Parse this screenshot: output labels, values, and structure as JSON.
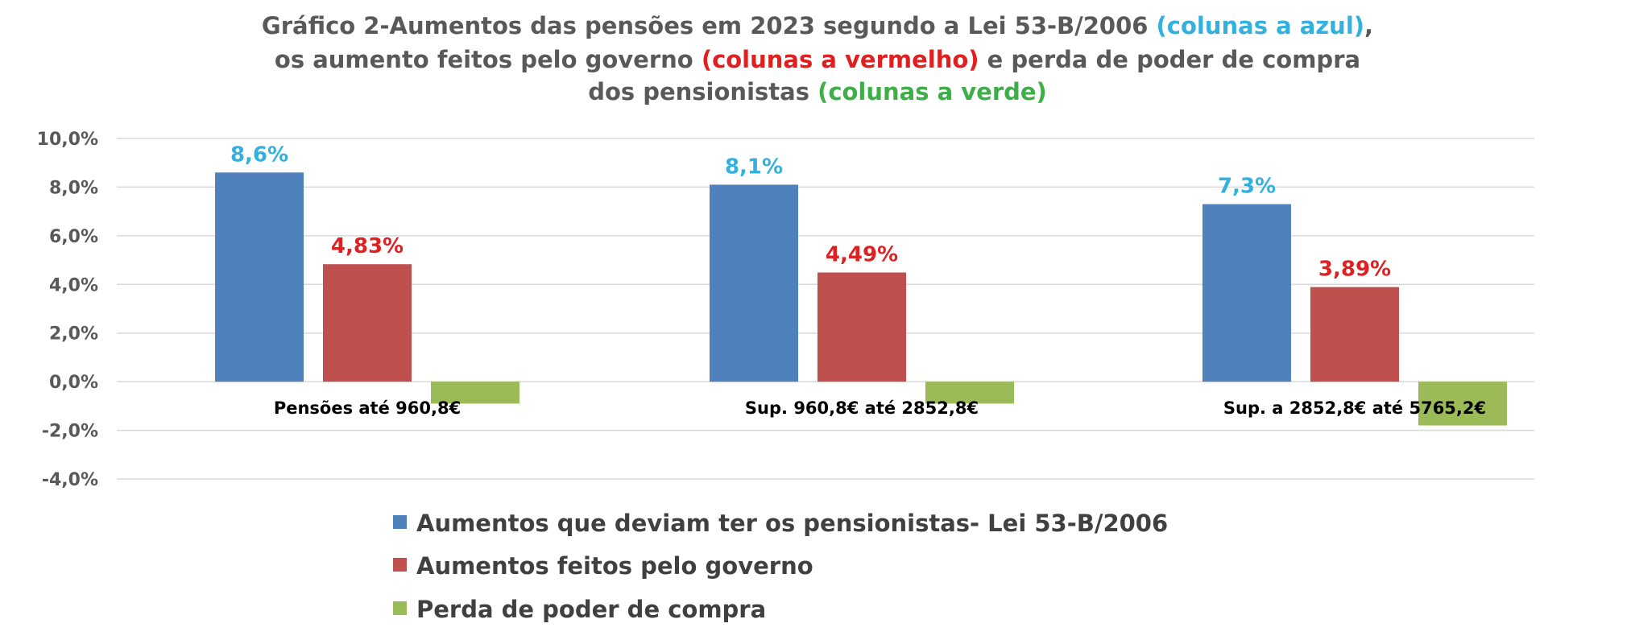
{
  "chart_data": {
    "type": "bar",
    "title_segments": [
      [
        {
          "text": "Gráfico 2-Aumentos das pensões em 2023 segundo a Lei 53-B/2006 ",
          "color": "#595959"
        },
        {
          "text": "(colunas a azul)",
          "color": "#33b0dd"
        },
        {
          "text": ",",
          "color": "#595959"
        }
      ],
      [
        {
          "text": "os aumento feitos pelo governo ",
          "color": "#595959"
        },
        {
          "text": "(colunas a vermelho)",
          "color": "#e02020"
        },
        {
          "text": " e perda de poder de compra",
          "color": "#595959"
        }
      ],
      [
        {
          "text": "dos pensionistas  ",
          "color": "#595959"
        },
        {
          "text": "(colunas a verde)",
          "color": "#3fae49"
        }
      ]
    ],
    "categories": [
      "Pensões até 960,8€",
      "Sup. 960,8€  até 2852,8€",
      "Sup. a 2852,8€  até  5765,2€"
    ],
    "series": [
      {
        "name": "Aumentos que deviam ter os pensionistas-  Lei 53-B/2006",
        "color": "#4f81bd",
        "label_color": "#33b0dd",
        "values": [
          8.6,
          8.1,
          7.3
        ],
        "labels": [
          "8,6%",
          "8,1%",
          "7,3%"
        ]
      },
      {
        "name": "Aumentos feitos pelo governo",
        "color": "#c0504d",
        "label_color": "#e02020",
        "values": [
          4.83,
          4.49,
          3.89
        ],
        "labels": [
          "4,83%",
          "4,49%",
          "3,89%"
        ]
      },
      {
        "name": "Perda de poder de compra",
        "color": "#9bbb59",
        "label_color": "#3fae49",
        "values": [
          -0.9,
          -0.9,
          -1.8
        ],
        "labels": [
          "",
          "",
          ""
        ]
      }
    ],
    "yticks": [
      10,
      8,
      6,
      4,
      2,
      0,
      -2,
      -4
    ],
    "ytick_labels": [
      "10,0%",
      "8,0%",
      "6,0%",
      "4,0%",
      "2,0%",
      "0,0%",
      "-2,0%",
      "-4,0%"
    ],
    "ylim": [
      -4,
      10
    ],
    "grid": true,
    "legend_position": "bottom"
  }
}
